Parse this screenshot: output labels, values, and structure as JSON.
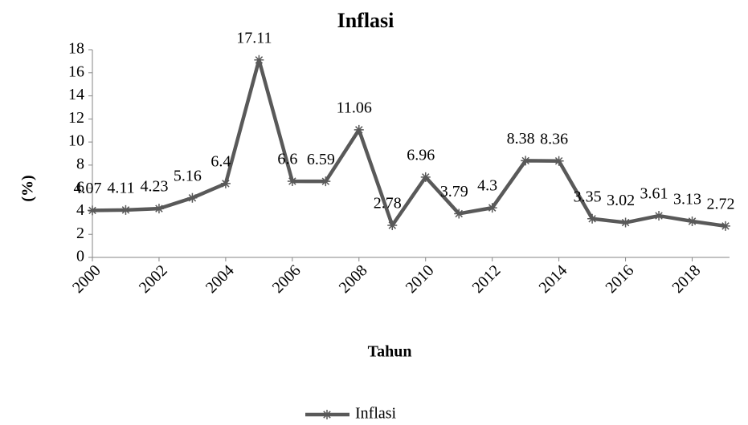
{
  "chart_data": {
    "type": "line",
    "title": "Inflasi",
    "x_label": "Tahun",
    "y_label": "(%)",
    "x": [
      2000,
      2001,
      2002,
      2003,
      2004,
      2005,
      2006,
      2007,
      2008,
      2009,
      2010,
      2011,
      2012,
      2013,
      2014,
      2015,
      2016,
      2017,
      2018,
      2019
    ],
    "series": [
      {
        "name": "Inflasi",
        "color": "#595959",
        "values": [
          4.07,
          4.11,
          4.23,
          5.16,
          6.4,
          17.11,
          6.6,
          6.59,
          11.06,
          2.78,
          6.96,
          3.79,
          4.3,
          8.38,
          8.36,
          3.35,
          3.02,
          3.61,
          3.13,
          2.72
        ]
      }
    ],
    "xlim": [
      2000,
      2019
    ],
    "xticks": [
      2000,
      2002,
      2004,
      2006,
      2008,
      2010,
      2012,
      2014,
      2016,
      2018
    ],
    "ylim": [
      0,
      18
    ],
    "yticks": [
      0,
      2,
      4,
      6,
      8,
      10,
      12,
      14,
      16,
      18
    ],
    "grid": false,
    "legend": "bottom"
  }
}
